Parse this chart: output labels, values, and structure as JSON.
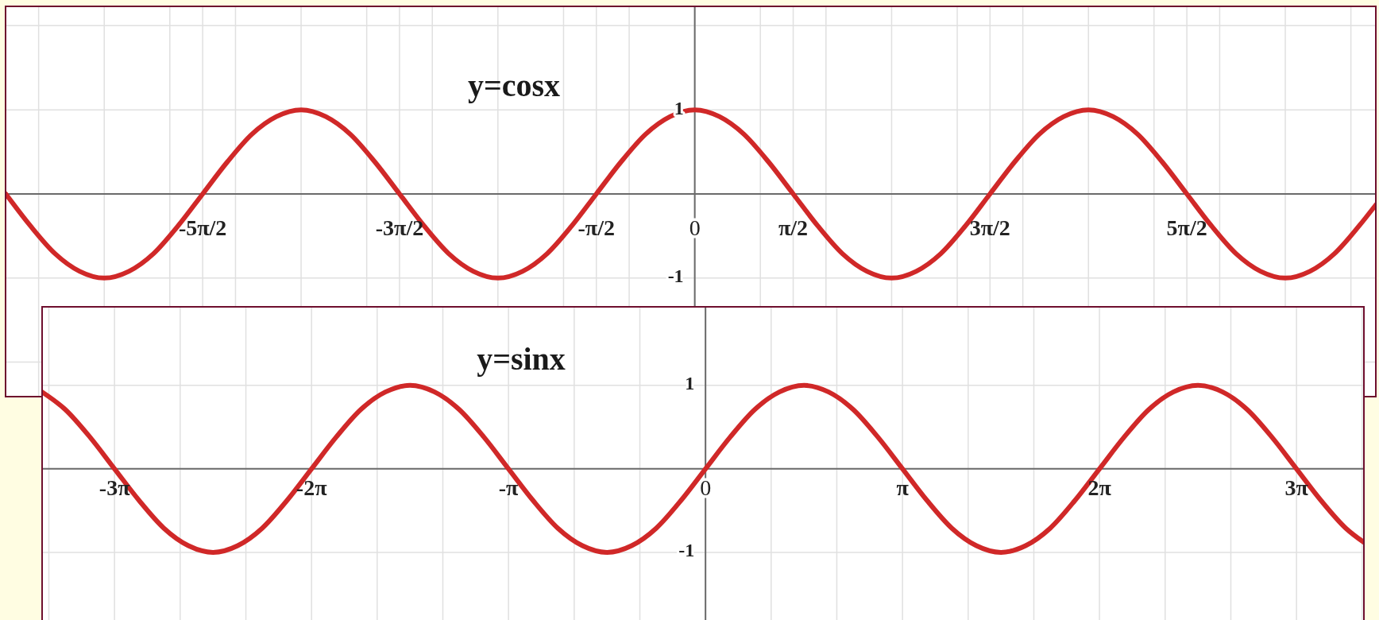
{
  "chart_data": [
    {
      "type": "line",
      "title": "y=cosx",
      "color": "#d02828",
      "grid": true,
      "x": [
        -10.996,
        -10.603,
        -10.21,
        -9.817,
        -9.425,
        -9.032,
        -8.639,
        -8.247,
        -7.854,
        -7.461,
        -7.069,
        -6.676,
        -6.283,
        -5.89,
        -5.498,
        -5.105,
        -4.712,
        -4.32,
        -3.927,
        -3.534,
        -3.142,
        -2.749,
        -2.356,
        -1.963,
        -1.571,
        -1.178,
        -0.785,
        -0.393,
        0,
        0.393,
        0.785,
        1.178,
        1.571,
        1.963,
        2.356,
        2.749,
        3.142,
        3.534,
        3.927,
        4.32,
        4.712,
        5.105,
        5.498,
        5.89,
        6.283,
        6.676,
        7.069,
        7.461,
        7.854,
        8.247,
        8.639,
        9.032,
        9.425,
        9.817,
        10.21,
        10.603,
        10.87
      ],
      "values": [
        0,
        -0.38,
        -0.71,
        -0.92,
        -1,
        -0.92,
        -0.71,
        -0.38,
        0,
        0.38,
        0.71,
        0.92,
        1,
        0.92,
        0.71,
        0.38,
        0,
        -0.38,
        -0.71,
        -0.92,
        -1,
        -0.92,
        -0.71,
        -0.38,
        0,
        0.38,
        0.71,
        0.92,
        1,
        0.92,
        0.71,
        0.38,
        0,
        -0.38,
        -0.71,
        -0.92,
        -1,
        -0.92,
        -0.71,
        -0.38,
        0,
        0.38,
        0.71,
        0.92,
        1,
        0.92,
        0.71,
        0.38,
        0,
        -0.38,
        -0.71,
        -0.92,
        -1,
        -0.92,
        -0.71,
        -0.38,
        -0.13
      ],
      "xlim": [
        -11.0,
        10.87
      ],
      "ylim": [
        -2.41,
        2.23
      ],
      "xticks": [
        {
          "value": -10.472,
          "label": null
        },
        {
          "value": -9.425,
          "label": null
        },
        {
          "value": -8.378,
          "label": null
        },
        {
          "value": -7.854,
          "label": "-5π/2"
        },
        {
          "value": -7.33,
          "label": null
        },
        {
          "value": -6.283,
          "label": null
        },
        {
          "value": -5.236,
          "label": null
        },
        {
          "value": -4.712,
          "label": "-3π/2"
        },
        {
          "value": -4.189,
          "label": null
        },
        {
          "value": -3.142,
          "label": null
        },
        {
          "value": -2.094,
          "label": null
        },
        {
          "value": -1.571,
          "label": "-π/2"
        },
        {
          "value": -1.047,
          "label": null
        },
        0,
        {
          "value": 1.047,
          "label": null
        },
        {
          "value": 1.571,
          "label": "π/2"
        },
        {
          "value": 2.094,
          "label": null
        },
        {
          "value": 3.142,
          "label": null
        },
        {
          "value": 4.189,
          "label": null
        },
        {
          "value": 4.712,
          "label": "3π/2"
        },
        {
          "value": 5.236,
          "label": null
        },
        {
          "value": 6.283,
          "label": null
        },
        {
          "value": 7.33,
          "label": null
        },
        {
          "value": 7.854,
          "label": "5π/2"
        },
        {
          "value": 8.378,
          "label": null
        },
        {
          "value": 9.425,
          "label": null
        },
        {
          "value": 10.472,
          "label": null
        }
      ],
      "yticks": [
        {
          "value": -2,
          "label": null
        },
        {
          "value": -1,
          "label": "-1"
        },
        {
          "value": 0,
          "label": null
        },
        {
          "value": 1,
          "label": "1"
        },
        {
          "value": 2,
          "label": null
        }
      ]
    },
    {
      "type": "line",
      "title": "y=sinx",
      "color": "#d02828",
      "grid": true,
      "x": [
        -10.58,
        -10.21,
        -9.817,
        -9.425,
        -9.032,
        -8.639,
        -8.247,
        -7.854,
        -7.461,
        -7.069,
        -6.676,
        -6.283,
        -5.89,
        -5.498,
        -5.105,
        -4.712,
        -4.32,
        -3.927,
        -3.534,
        -3.142,
        -2.749,
        -2.356,
        -1.963,
        -1.571,
        -1.178,
        -0.785,
        -0.393,
        0,
        0.393,
        0.785,
        1.178,
        1.571,
        1.963,
        2.356,
        2.749,
        3.142,
        3.534,
        3.927,
        4.32,
        4.712,
        5.105,
        5.498,
        5.89,
        6.283,
        6.676,
        7.069,
        7.461,
        7.854,
        8.247,
        8.639,
        9.032,
        9.425,
        9.817,
        10.21,
        10.5
      ],
      "values": [
        0.92,
        0.71,
        0.38,
        0,
        -0.38,
        -0.71,
        -0.92,
        -1,
        -0.92,
        -0.71,
        -0.38,
        0,
        0.38,
        0.71,
        0.92,
        1,
        0.92,
        0.71,
        0.38,
        0,
        -0.38,
        -0.71,
        -0.92,
        -1,
        -0.92,
        -0.71,
        -0.38,
        0,
        0.38,
        0.71,
        0.92,
        1,
        0.92,
        0.71,
        0.38,
        0,
        -0.38,
        -0.71,
        -0.92,
        -1,
        -0.92,
        -0.71,
        -0.38,
        0,
        0.38,
        0.71,
        0.92,
        1,
        0.92,
        0.71,
        0.38,
        0,
        -0.38,
        -0.71,
        -0.88
      ],
      "xlim": [
        -10.58,
        10.5
      ],
      "ylim": [
        -1.81,
        1.94
      ],
      "xticks": [
        {
          "value": -10.472,
          "label": null
        },
        {
          "value": -9.425,
          "label": "-3π"
        },
        {
          "value": -8.378,
          "label": null
        },
        {
          "value": -7.33,
          "label": null
        },
        {
          "value": -6.283,
          "label": "-2π"
        },
        {
          "value": -5.236,
          "label": null
        },
        {
          "value": -4.189,
          "label": null
        },
        {
          "value": -3.142,
          "label": "-π"
        },
        {
          "value": -2.094,
          "label": null
        },
        {
          "value": -1.047,
          "label": null
        },
        0,
        {
          "value": 1.047,
          "label": null
        },
        {
          "value": 2.094,
          "label": null
        },
        {
          "value": 3.142,
          "label": "π"
        },
        {
          "value": 4.189,
          "label": null
        },
        {
          "value": 5.236,
          "label": null
        },
        {
          "value": 6.283,
          "label": "2π"
        },
        {
          "value": 7.33,
          "label": null
        },
        {
          "value": 8.378,
          "label": null
        },
        {
          "value": 9.425,
          "label": "3π"
        },
        {
          "value": 10.472,
          "label": null
        }
      ],
      "yticks": [
        {
          "value": -1,
          "label": "-1"
        },
        {
          "value": 0,
          "label": null
        },
        {
          "value": 1,
          "label": "1"
        }
      ]
    }
  ]
}
